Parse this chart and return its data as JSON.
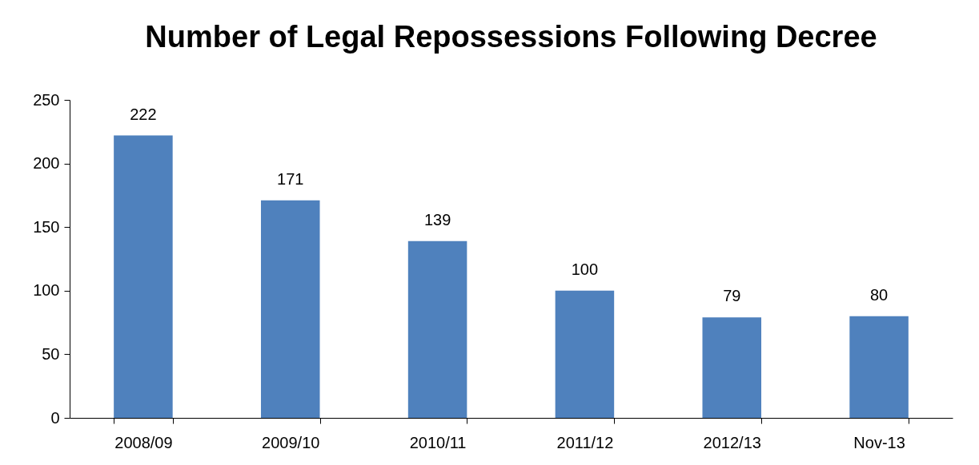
{
  "chart_data": {
    "type": "bar",
    "title": "Number of Legal Repossessions Following Decree",
    "categories": [
      "2008/09",
      "2009/10",
      "2010/11",
      "2011/12",
      "2012/13",
      "Nov-13"
    ],
    "values": [
      222,
      171,
      139,
      100,
      79,
      80
    ],
    "color": "#4f81bd",
    "ylim": [
      0,
      250
    ],
    "yticks": [
      0,
      50,
      100,
      150,
      200,
      250
    ],
    "data_labels": true,
    "grid": false
  }
}
